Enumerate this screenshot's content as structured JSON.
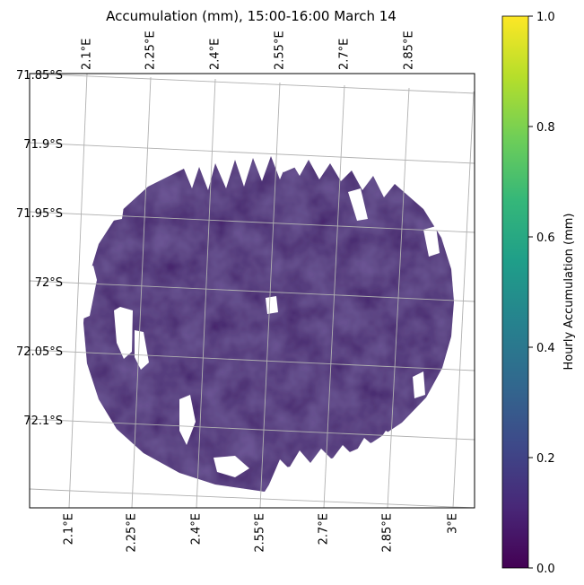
{
  "chart_data": {
    "type": "heatmap",
    "title": "Accumulation (mm), 15:00-16:00 March 14",
    "projection": "radar map with longitude/latitude gridlines",
    "bottom_lon_ticks": [
      "2.1°E",
      "2.25°E",
      "2.4°E",
      "2.55°E",
      "2.7°E",
      "2.85°E",
      "3°E"
    ],
    "top_lon_ticks": [
      "2.1°E",
      "2.25°E",
      "2.4°E",
      "2.55°E",
      "2.7°E",
      "2.85°E"
    ],
    "lat_ticks": [
      "71.85°S",
      "71.9°S",
      "71.95°S",
      "72°S",
      "72.05°S",
      "72.1°S"
    ],
    "field": {
      "description": "Radar-derived hourly accumulation; nearly uniform low values across the disk",
      "min_value": 0.0,
      "typical_value": 0.05,
      "max_value": 0.12,
      "gaps": "white gaps near western edge, speckle along northern and southern rim, small gap at radar center"
    },
    "colorbar": {
      "label": "Hourly Accumulation (mm)",
      "colormap": "viridis",
      "min": 0.0,
      "max": 1.0,
      "ticks": [
        "0.0",
        "0.2",
        "0.4",
        "0.6",
        "0.8",
        "1.0"
      ],
      "tick_values": [
        0.0,
        0.2,
        0.4,
        0.6,
        0.8,
        1.0
      ]
    },
    "grid": true,
    "colors": {
      "viridis": [
        "#440154",
        "#482878",
        "#3e4989",
        "#31688e",
        "#26828e",
        "#1f9e89",
        "#35b779",
        "#6ece58",
        "#b5de2b",
        "#fde725"
      ],
      "data_fill": "#3f1a66",
      "grid": "#b0b0b0"
    }
  }
}
